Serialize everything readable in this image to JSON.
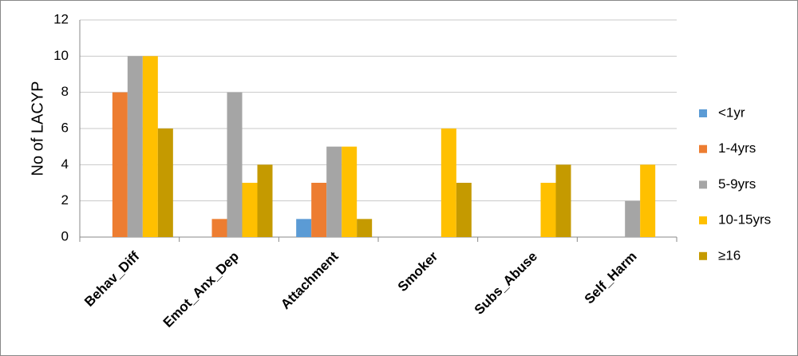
{
  "chart_data": {
    "type": "bar",
    "y_label": "No of LACYP",
    "categories": [
      "Behav_Diff",
      "Emot_Anx_Dep",
      "Attachment",
      "Smoker",
      "Subs_Abuse",
      "Self_Harm"
    ],
    "series": [
      {
        "name": "<1yr",
        "color": "#5b9bd5",
        "values": [
          0,
          0,
          1,
          0,
          0,
          0
        ]
      },
      {
        "name": "1-4yrs",
        "color": "#ed7d31",
        "values": [
          8,
          1,
          3,
          0,
          0,
          0
        ]
      },
      {
        "name": "5-9yrs",
        "color": "#a5a5a5",
        "values": [
          10,
          8,
          5,
          0,
          0,
          2
        ]
      },
      {
        "name": "10-15yrs",
        "color": "#ffc000",
        "values": [
          10,
          3,
          5,
          6,
          3,
          4
        ]
      },
      {
        "name": "≥16",
        "color": "#c59a00",
        "values": [
          6,
          4,
          1,
          3,
          4,
          0
        ]
      }
    ],
    "ylim": [
      0,
      12
    ],
    "yticks": [
      0,
      2,
      4,
      6,
      8,
      10,
      12
    ],
    "grid": true,
    "legend": "right"
  }
}
